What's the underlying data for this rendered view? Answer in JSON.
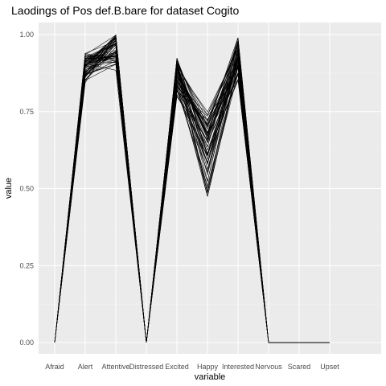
{
  "chart_data": {
    "type": "line",
    "title": "Laodings of Pos def.B.bare for dataset Cogito",
    "xlabel": "variable",
    "ylabel": "value",
    "categories": [
      "Afraid",
      "Alert",
      "Attentive",
      "Distressed",
      "Excited",
      "Happy",
      "Interested",
      "Nervous",
      "Scared",
      "Upset"
    ],
    "y_ticks": [
      "0.00",
      "0.25",
      "0.50",
      "0.75",
      "1.00"
    ],
    "ylim": [
      0,
      1.0
    ],
    "grid": true,
    "legend": "none",
    "series_envelope": {
      "Afraid": [
        0.0,
        0.0
      ],
      "Alert": [
        0.8,
        0.94
      ],
      "Attentive": [
        0.84,
        1.0
      ],
      "Distressed": [
        0.0,
        0.0
      ],
      "Excited": [
        0.75,
        0.93
      ],
      "Happy": [
        0.47,
        0.75
      ],
      "Interested": [
        0.8,
        0.99
      ],
      "Nervous": [
        0.0,
        0.0
      ],
      "Scared": [
        0.0,
        0.0
      ],
      "Upset": [
        0.0,
        0.0
      ]
    },
    "series_count": 60,
    "colors": {
      "panel": "#ebebeb",
      "grid_major": "#ffffff",
      "grid_minor": "#f2f2f2",
      "line": "#000000",
      "text": "#4d4d4d"
    }
  }
}
